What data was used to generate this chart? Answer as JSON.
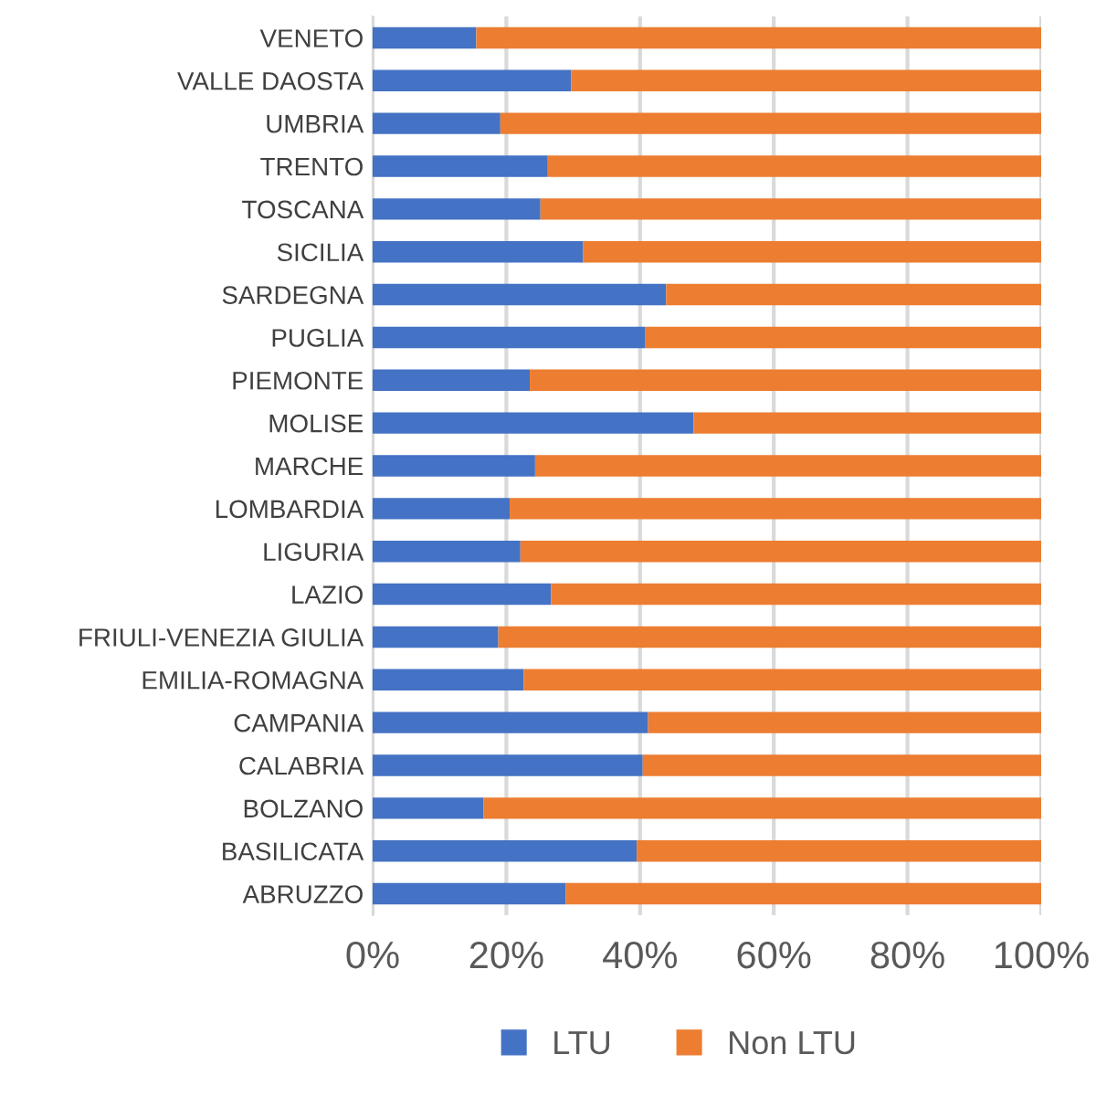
{
  "chart_data": {
    "type": "bar",
    "orientation": "horizontal",
    "stacked": true,
    "categories": [
      "VENETO",
      "VALLE DAOSTA",
      "UMBRIA",
      "TRENTO",
      "TOSCANA",
      "SICILIA",
      "SARDEGNA",
      "PUGLIA",
      "PIEMONTE",
      "MOLISE",
      "MARCHE",
      "LOMBARDIA",
      "LIGURIA",
      "LAZIO",
      "FRIULI-VENEZIA GIULIA",
      "EMILIA-ROMAGNA",
      "CAMPANIA",
      "CALABRIA",
      "BOLZANO",
      "BASILICATA",
      "ABRUZZO"
    ],
    "series": [
      {
        "name": "LTU",
        "color": "#4472c4",
        "values": [
          15.5,
          29.7,
          19.1,
          26.2,
          25.1,
          31.5,
          43.9,
          40.8,
          23.5,
          48.0,
          24.3,
          20.5,
          22.1,
          26.7,
          18.8,
          22.6,
          41.2,
          40.4,
          16.6,
          39.5,
          28.9
        ]
      },
      {
        "name": "Non LTU",
        "color": "#ed7d31",
        "values": [
          84.5,
          70.3,
          80.9,
          73.8,
          74.9,
          68.5,
          56.1,
          59.2,
          76.5,
          52.0,
          75.7,
          79.5,
          77.9,
          73.3,
          81.2,
          77.4,
          58.8,
          59.6,
          83.4,
          60.5,
          71.1
        ]
      }
    ],
    "xlim": [
      0,
      100
    ],
    "xticks": [
      {
        "value": 0,
        "label": "0%"
      },
      {
        "value": 20,
        "label": "20%"
      },
      {
        "value": 40,
        "label": "40%"
      },
      {
        "value": 60,
        "label": "60%"
      },
      {
        "value": 80,
        "label": "80%"
      },
      {
        "value": 100,
        "label": "100%"
      }
    ],
    "grid": "x",
    "legend": "bottom"
  }
}
